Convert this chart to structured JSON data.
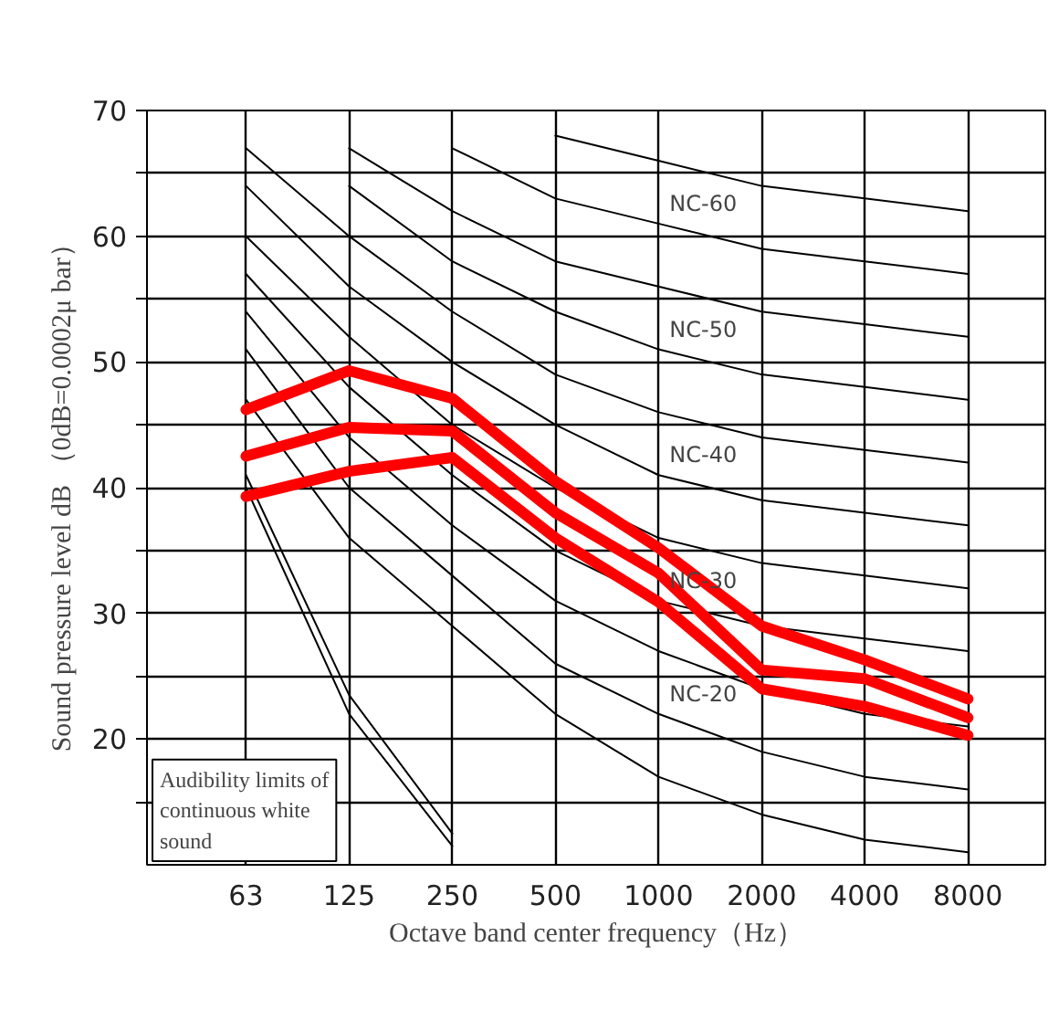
{
  "chart_data": {
    "type": "line",
    "xlabel": "Octave band center frequency（Hz）",
    "ylabel": "Sound pressure level dB （0dB=0.0002μ  bar）",
    "categories": [
      "63",
      "125",
      "250",
      "500",
      "1000",
      "2000",
      "4000",
      "8000"
    ],
    "ylim": [
      10,
      70
    ],
    "yticks": [
      {
        "value": 15,
        "label": null
      },
      20,
      {
        "value": 25,
        "label": null
      },
      30,
      {
        "value": 35,
        "label": null
      },
      40,
      {
        "value": 45,
        "label": null
      },
      50,
      {
        "value": 55,
        "label": null
      },
      60,
      {
        "value": 65,
        "label": null
      },
      70
    ],
    "grid": true,
    "line_style": "solid",
    "series": [
      {
        "color": "#000000",
        "values": [
          47,
          36,
          29,
          22,
          17,
          14,
          12,
          11
        ]
      },
      {
        "color": "#000000",
        "values": [
          51,
          40,
          33,
          26,
          22,
          19,
          17,
          16
        ]
      },
      {
        "color": "#000000",
        "values": [
          54,
          44,
          37,
          31,
          27,
          24,
          22,
          21
        ]
      },
      {
        "color": "#000000",
        "values": [
          57,
          48,
          41,
          35,
          31,
          29,
          28,
          27
        ]
      },
      {
        "color": "#000000",
        "values": [
          60,
          52,
          45,
          40,
          36,
          34,
          33,
          32
        ]
      },
      {
        "color": "#000000",
        "values": [
          64,
          56,
          50,
          45,
          41,
          39,
          38,
          37
        ]
      },
      {
        "color": "#000000",
        "values": [
          67,
          60,
          54,
          49,
          46,
          44,
          43,
          42
        ]
      },
      {
        "color": "#000000",
        "values": [
          null,
          64,
          58,
          54,
          51,
          49,
          48,
          47
        ]
      },
      {
        "color": "#000000",
        "values": [
          null,
          67,
          62,
          58,
          56,
          54,
          53,
          52
        ]
      },
      {
        "color": "#000000",
        "values": [
          null,
          null,
          67,
          63,
          61,
          59,
          58,
          57
        ]
      },
      {
        "color": "#000000",
        "values": [
          null,
          null,
          null,
          68,
          66,
          64,
          63,
          62
        ]
      },
      {
        "color": "#000000",
        "values": [
          41,
          23.5,
          12.5,
          null,
          null,
          null,
          null,
          null
        ]
      },
      {
        "color": "#000000",
        "values": [
          40,
          22,
          11.5,
          null,
          null,
          null,
          null,
          null
        ]
      },
      {
        "color": "#ff0000",
        "values": [
          46.2,
          49.3,
          47.1,
          40.5,
          35.2,
          29,
          26.3,
          23.2
        ]
      },
      {
        "color": "#ff0000",
        "values": [
          42.5,
          44.8,
          44.5,
          38,
          33.2,
          25.5,
          24.8,
          21.7
        ]
      },
      {
        "color": "#ff0000",
        "values": [
          39.3,
          41.3,
          42.4,
          36,
          30.9,
          24,
          22.6,
          20.3
        ]
      }
    ],
    "annotations": [
      {
        "text": "NC-60",
        "x": "1000",
        "y": 61
      },
      {
        "text": "NC-50",
        "x": "1000",
        "y": 51
      },
      {
        "text": "NC-40",
        "x": "1000",
        "y": 41
      },
      {
        "text": "NC-30",
        "x": "1000",
        "y": 31
      },
      {
        "text": "NC-20",
        "x": "1000",
        "y": 22
      },
      "Audibility limits of\ncontinuous white\nsound"
    ]
  }
}
